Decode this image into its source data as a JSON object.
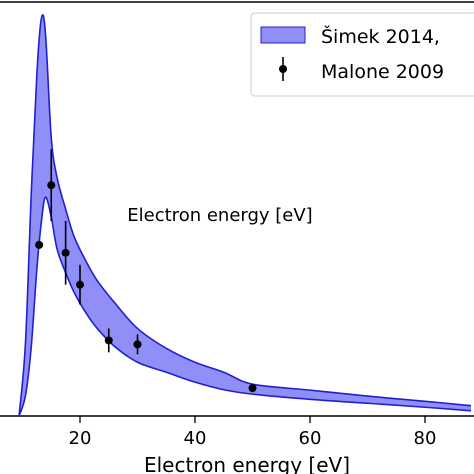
{
  "chart_data": {
    "type": "area",
    "xlabel": "Electron energy  [eV]",
    "x_ticks": [
      20,
      40,
      60,
      80
    ],
    "xlim": [
      0,
      88
    ],
    "ylim": [
      0,
      1
    ],
    "legend_placement": "top-right",
    "band": {
      "name": "Šimek 2014,",
      "color": "#8f8ff7",
      "edge_color": "#2020d0",
      "x": [
        9.4,
        10.5,
        11.5,
        12.5,
        13.3,
        14.0,
        15.0,
        16.0,
        17.5,
        19.0,
        21.0,
        23.0,
        26.0,
        30.0,
        35.0,
        40.0,
        45.0,
        50.0,
        60.0,
        70.0,
        80.0,
        88.0
      ],
      "upper": [
        0.0,
        0.18,
        0.55,
        0.86,
        1.0,
        0.96,
        0.7,
        0.6,
        0.52,
        0.45,
        0.39,
        0.34,
        0.285,
        0.22,
        0.17,
        0.135,
        0.11,
        0.08,
        0.065,
        0.05,
        0.037,
        0.026
      ],
      "lower": [
        0.0,
        0.05,
        0.17,
        0.37,
        0.49,
        0.55,
        0.5,
        0.42,
        0.36,
        0.31,
        0.26,
        0.22,
        0.175,
        0.135,
        0.11,
        0.085,
        0.066,
        0.055,
        0.042,
        0.032,
        0.022,
        0.013
      ]
    },
    "points": {
      "name": "Malone 2009",
      "color": "#000000",
      "x": [
        12.9,
        15.0,
        17.5,
        20.0,
        25.0,
        30.0,
        50.0
      ],
      "y": [
        0.43,
        0.58,
        0.41,
        0.33,
        0.19,
        0.18,
        0.07
      ],
      "yerr": [
        0.0,
        0.09,
        0.08,
        0.05,
        0.03,
        0.025,
        0.01
      ]
    },
    "partial_label": "Electron energy  [eV]"
  }
}
